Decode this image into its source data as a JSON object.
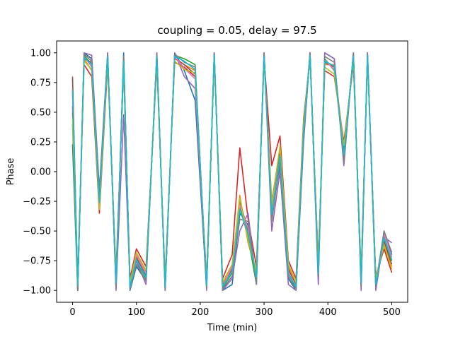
{
  "chart_data": {
    "type": "line",
    "title": "coupling = 0.05, delay = 97.5",
    "xlabel": "Time (min)",
    "ylabel": "Phase",
    "xlim": [
      -25,
      525
    ],
    "ylim": [
      -1.1,
      1.1
    ],
    "xticks": [
      0,
      100,
      200,
      300,
      400,
      500
    ],
    "xtick_labels": [
      "0",
      "100",
      "200",
      "300",
      "400",
      "500"
    ],
    "yticks": [
      -1.0,
      -0.75,
      -0.5,
      -0.25,
      0.0,
      0.25,
      0.5,
      0.75,
      1.0
    ],
    "ytick_labels": [
      "−1.00",
      "−0.75",
      "−0.50",
      "−0.25",
      "0.00",
      "0.25",
      "0.50",
      "0.75",
      "1.00"
    ],
    "grid": false,
    "legend": "none",
    "series": [
      {
        "color": "#1f77b4",
        "x": [
          0,
          8,
          18,
          30,
          42,
          55,
          68,
          80,
          90,
          100,
          115,
          132,
          145,
          160,
          175,
          192,
          210,
          222,
          235,
          250,
          262,
          275,
          288,
          300,
          312,
          325,
          338,
          350,
          362,
          372,
          385,
          395,
          410,
          425,
          440,
          452,
          462,
          475,
          488,
          500
        ],
        "values": [
          0.23,
          -1.0,
          1.0,
          0.95,
          -0.2,
          1.0,
          -0.98,
          1.0,
          -1.0,
          -0.8,
          -0.92,
          1.0,
          -1.0,
          1.0,
          0.85,
          0.6,
          -0.98,
          1.0,
          -1.0,
          -0.95,
          -0.35,
          -0.45,
          -0.9,
          1.0,
          -0.35,
          0.05,
          -0.9,
          -1.0,
          0.35,
          1.0,
          -0.9,
          1.0,
          0.95,
          0.1,
          1.0,
          -0.95,
          1.0,
          -0.95,
          -0.5,
          -0.7
        ]
      },
      {
        "color": "#ff7f0e",
        "x": [
          0,
          8,
          18,
          30,
          42,
          55,
          68,
          80,
          90,
          100,
          115,
          132,
          145,
          160,
          175,
          192,
          210,
          222,
          235,
          250,
          262,
          275,
          288,
          300,
          312,
          325,
          338,
          350,
          362,
          372,
          385,
          395,
          410,
          425,
          440,
          452,
          462,
          475,
          488,
          500
        ],
        "values": [
          0.5,
          -0.95,
          0.95,
          0.85,
          -0.3,
          0.95,
          -0.9,
          0.9,
          -0.95,
          -0.7,
          -0.85,
          0.95,
          -0.95,
          0.95,
          0.9,
          0.85,
          -0.95,
          0.98,
          -0.95,
          -0.8,
          -0.2,
          -0.6,
          -0.85,
          0.98,
          -0.25,
          0.2,
          -0.8,
          -0.95,
          0.4,
          0.98,
          -0.8,
          0.9,
          0.9,
          0.2,
          0.95,
          -0.9,
          0.98,
          -0.9,
          -0.6,
          -0.8
        ]
      },
      {
        "color": "#2ca02c",
        "x": [
          0,
          8,
          18,
          30,
          42,
          55,
          68,
          80,
          90,
          100,
          115,
          132,
          145,
          160,
          175,
          192,
          210,
          222,
          235,
          250,
          262,
          275,
          288,
          300,
          312,
          325,
          338,
          350,
          362,
          372,
          385,
          395,
          410,
          425,
          440,
          452,
          462,
          475,
          488,
          500
        ],
        "values": [
          0.4,
          -1.0,
          0.98,
          0.9,
          -0.25,
          0.98,
          -0.95,
          0.95,
          -0.98,
          -0.75,
          -0.9,
          0.98,
          -0.98,
          0.98,
          0.95,
          0.9,
          -0.97,
          1.0,
          -0.98,
          -0.85,
          -0.3,
          -0.55,
          -0.95,
          1.0,
          -0.4,
          0.1,
          -0.85,
          -0.98,
          0.3,
          1.0,
          -0.85,
          0.95,
          0.85,
          0.15,
          0.98,
          -0.95,
          1.0,
          -0.92,
          -0.55,
          -0.75
        ]
      },
      {
        "color": "#d62728",
        "x": [
          0,
          8,
          18,
          30,
          42,
          55,
          68,
          80,
          90,
          100,
          115,
          132,
          145,
          160,
          175,
          192,
          210,
          222,
          235,
          250,
          262,
          275,
          288,
          300,
          312,
          325,
          338,
          350,
          362,
          372,
          385,
          395,
          410,
          425,
          440,
          452,
          462,
          475,
          488,
          500
        ],
        "values": [
          0.55,
          -0.9,
          0.9,
          0.8,
          -0.35,
          0.9,
          -0.85,
          0.88,
          -0.9,
          -0.65,
          -0.8,
          0.9,
          -0.9,
          0.92,
          0.88,
          0.8,
          -0.9,
          0.95,
          -0.9,
          -0.7,
          0.2,
          -0.4,
          -0.8,
          0.95,
          0.05,
          0.3,
          -0.75,
          -0.9,
          0.45,
          0.95,
          -0.75,
          0.85,
          0.8,
          0.25,
          0.9,
          -0.85,
          0.95,
          -0.88,
          -0.65,
          -0.85
        ]
      },
      {
        "color": "#9467bd",
        "x": [
          0,
          8,
          18,
          30,
          42,
          55,
          68,
          80,
          90,
          100,
          115,
          132,
          145,
          160,
          175,
          192,
          210,
          222,
          235,
          250,
          262,
          275,
          288,
          300,
          312,
          325,
          338,
          350,
          362,
          372,
          385,
          395,
          410,
          425,
          440,
          452,
          462,
          475,
          488,
          500
        ],
        "values": [
          0.78,
          -0.98,
          1.0,
          0.98,
          -0.15,
          1.0,
          -1.0,
          0.48,
          -0.95,
          -0.75,
          -0.95,
          1.0,
          -1.0,
          1.0,
          0.8,
          0.7,
          -1.0,
          1.0,
          -1.0,
          -0.9,
          -0.5,
          -0.35,
          -0.95,
          1.0,
          -0.5,
          0.0,
          -0.95,
          -1.0,
          0.25,
          1.0,
          -0.95,
          1.0,
          0.95,
          0.05,
          1.0,
          -1.0,
          1.0,
          -1.0,
          -0.55,
          -0.6
        ]
      },
      {
        "color": "#8c564b",
        "x": [
          0,
          8,
          18,
          30,
          42,
          55,
          68,
          80,
          90,
          100,
          115,
          132,
          145,
          160,
          175,
          192,
          210,
          222,
          235,
          250,
          262,
          275,
          288,
          300,
          312,
          325,
          338,
          350,
          362,
          372,
          385,
          395,
          410,
          425,
          440,
          452,
          462,
          475,
          488,
          500
        ],
        "values": [
          0.8,
          -1.0,
          0.95,
          0.92,
          -0.28,
          0.97,
          -0.92,
          0.92,
          -0.97,
          -0.72,
          -0.88,
          0.96,
          -0.96,
          0.96,
          0.9,
          0.82,
          -0.96,
          0.97,
          -0.96,
          -0.82,
          -0.25,
          -0.5,
          -0.88,
          0.97,
          -0.3,
          0.15,
          -0.82,
          -0.96,
          0.38,
          0.97,
          -0.82,
          0.92,
          0.88,
          0.18,
          0.96,
          -0.92,
          0.97,
          -0.94,
          -0.58,
          -0.78
        ]
      },
      {
        "color": "#e377c2",
        "x": [
          0,
          8,
          18,
          30,
          42,
          55,
          68,
          80,
          90,
          100,
          115,
          132,
          145,
          160,
          175,
          192,
          210,
          222,
          235,
          250,
          262,
          275,
          288,
          300,
          312,
          325,
          338,
          350,
          362,
          372,
          385,
          395,
          410,
          425,
          440,
          452,
          462,
          475,
          488,
          500
        ],
        "values": [
          0.65,
          -0.97,
          0.97,
          0.88,
          -0.22,
          0.96,
          -0.93,
          0.9,
          -0.96,
          -0.7,
          -0.86,
          0.97,
          -0.97,
          0.97,
          0.87,
          0.78,
          -0.95,
          0.98,
          -0.97,
          -0.8,
          -0.28,
          -0.48,
          -0.9,
          0.96,
          -0.32,
          0.12,
          -0.84,
          -0.97,
          0.33,
          0.98,
          -0.84,
          0.94,
          0.86,
          0.12,
          0.97,
          -0.93,
          0.98,
          -0.93,
          -0.52,
          -0.72
        ]
      },
      {
        "color": "#7f7f7f",
        "x": [
          0,
          8,
          18,
          30,
          42,
          55,
          68,
          80,
          90,
          100,
          115,
          132,
          145,
          160,
          175,
          192,
          210,
          222,
          235,
          250,
          262,
          275,
          288,
          300,
          312,
          325,
          338,
          350,
          362,
          372,
          385,
          395,
          410,
          425,
          440,
          452,
          462,
          475,
          488,
          500
        ],
        "values": [
          0.7,
          -0.99,
          0.99,
          0.93,
          -0.18,
          0.99,
          -0.97,
          0.97,
          -0.99,
          -0.78,
          -0.92,
          0.99,
          -0.99,
          0.99,
          0.92,
          0.88,
          -0.98,
          0.99,
          -0.99,
          -0.88,
          -0.4,
          -0.42,
          -0.93,
          0.99,
          -0.42,
          0.08,
          -0.88,
          -0.99,
          0.28,
          0.99,
          -0.88,
          0.97,
          0.92,
          0.08,
          0.99,
          -0.97,
          0.99,
          -0.97,
          -0.5,
          -0.68
        ]
      },
      {
        "color": "#bcbd22",
        "x": [
          0,
          8,
          18,
          30,
          42,
          55,
          68,
          80,
          90,
          100,
          115,
          132,
          145,
          160,
          175,
          192,
          210,
          222,
          235,
          250,
          262,
          275,
          288,
          300,
          312,
          325,
          338,
          350,
          362,
          372,
          385,
          395,
          410,
          425,
          440,
          452,
          462,
          475,
          488,
          500
        ],
        "values": [
          0.45,
          -0.93,
          0.93,
          0.86,
          -0.32,
          0.93,
          -0.88,
          0.89,
          -0.93,
          -0.68,
          -0.83,
          0.93,
          -0.93,
          0.93,
          0.86,
          0.83,
          -0.92,
          0.96,
          -0.93,
          -0.78,
          -0.22,
          -0.58,
          -0.84,
          0.94,
          -0.28,
          0.22,
          -0.78,
          -0.93,
          0.42,
          0.96,
          -0.78,
          0.88,
          0.82,
          0.22,
          0.93,
          -0.88,
          0.96,
          -0.9,
          -0.62,
          -0.82
        ]
      },
      {
        "color": "#17becf",
        "x": [
          0,
          8,
          18,
          30,
          42,
          55,
          68,
          80,
          90,
          100,
          115,
          132,
          145,
          160,
          175,
          192,
          210,
          222,
          235,
          250,
          262,
          275,
          288,
          300,
          312,
          325,
          338,
          350,
          362,
          372,
          385,
          395,
          410,
          425,
          440,
          452,
          462,
          475,
          488,
          500
        ],
        "values": [
          0.68,
          -0.96,
          0.96,
          0.9,
          -0.26,
          0.97,
          -0.94,
          0.93,
          -0.97,
          -0.74,
          -0.89,
          0.97,
          -0.97,
          0.97,
          0.93,
          0.86,
          -0.96,
          0.98,
          -0.97,
          -0.84,
          -0.32,
          -0.52,
          -0.89,
          0.97,
          -0.36,
          0.13,
          -0.86,
          -0.97,
          0.36,
          0.98,
          -0.86,
          0.93,
          0.89,
          0.14,
          0.97,
          -0.94,
          0.98,
          -0.95,
          -0.56,
          -0.74
        ]
      }
    ]
  }
}
